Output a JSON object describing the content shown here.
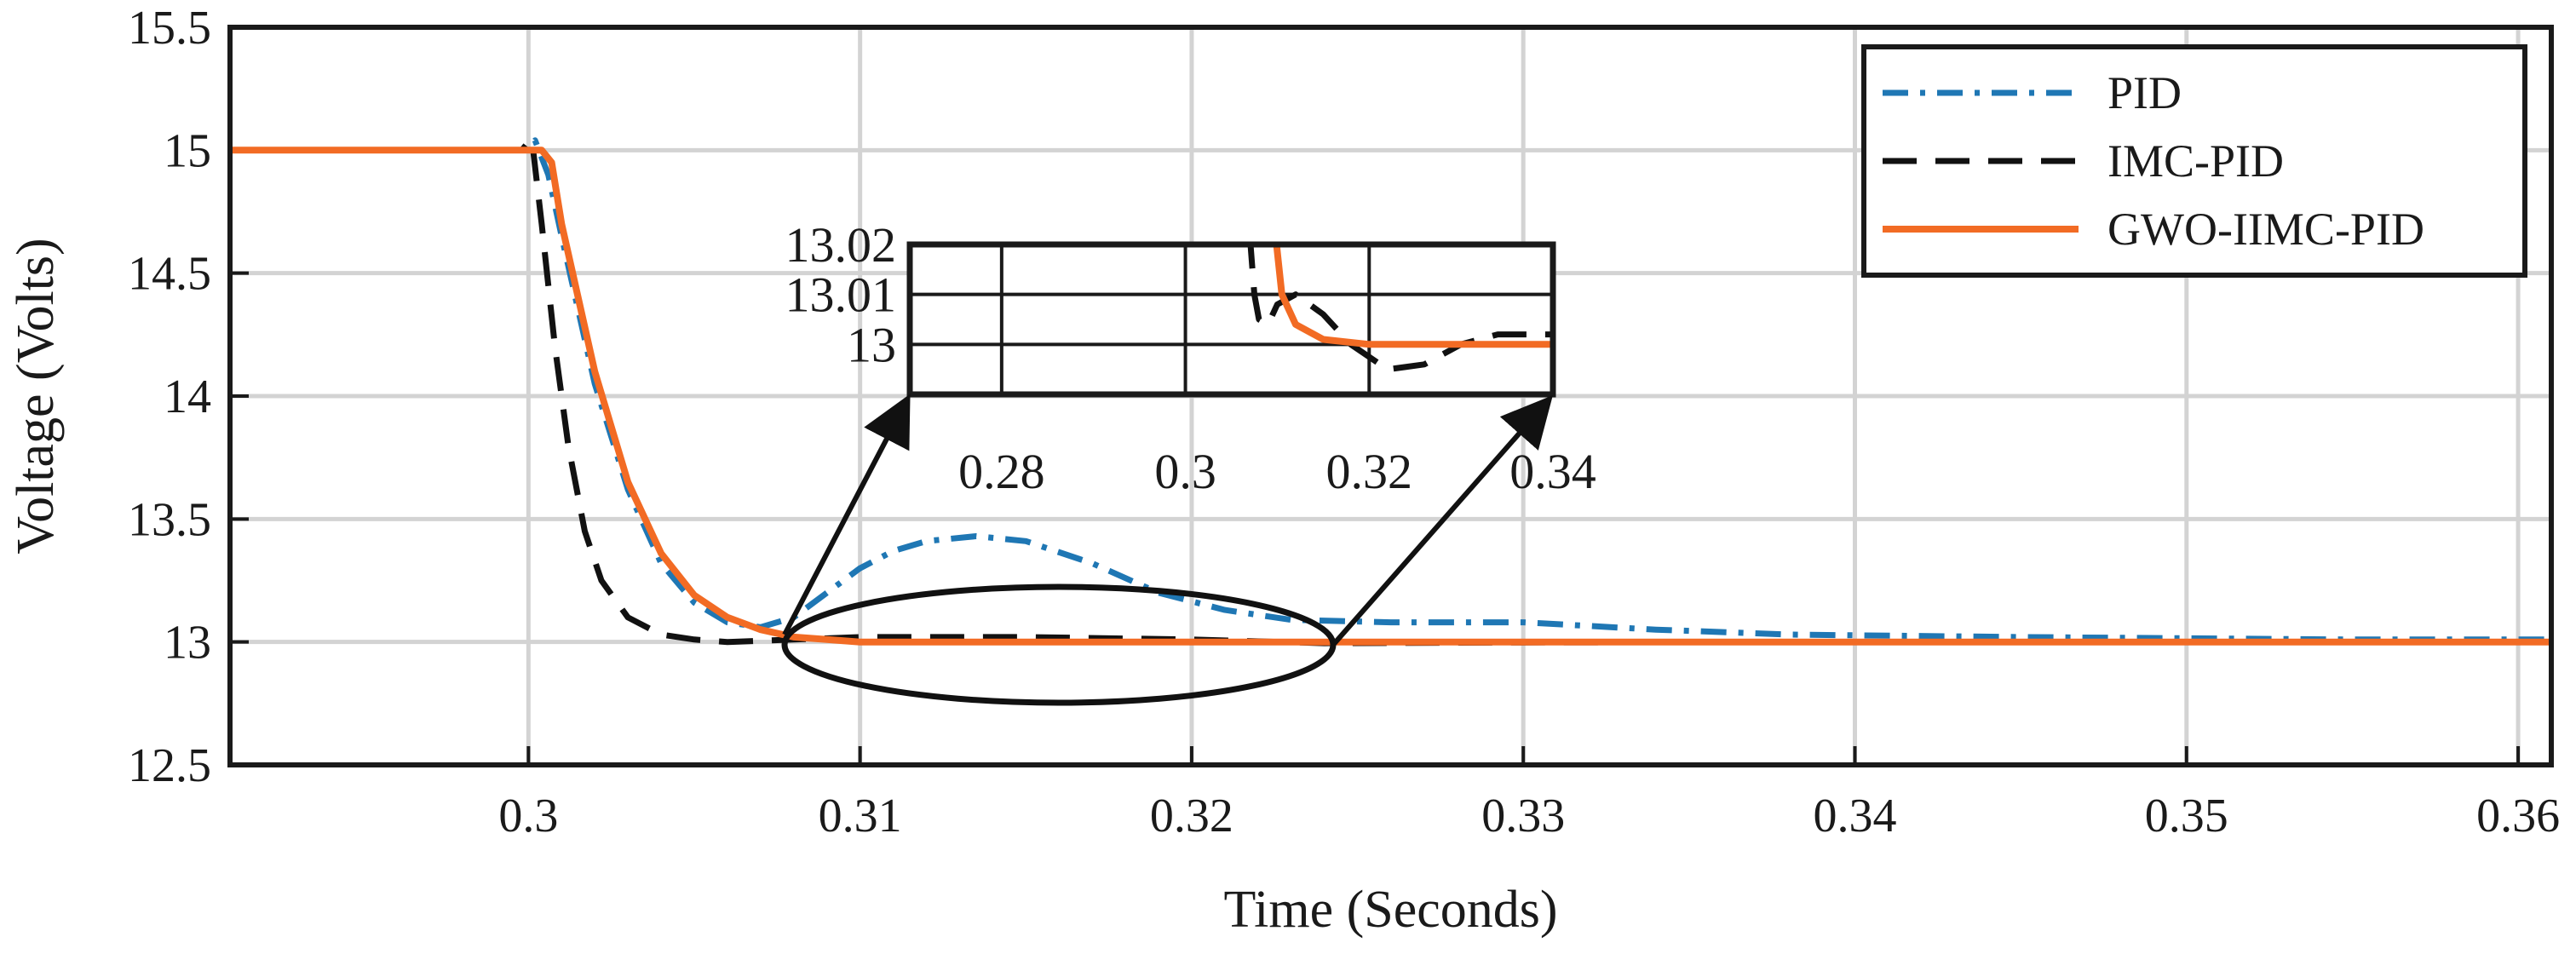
{
  "chart_data": {
    "type": "line",
    "xlabel": "Time (Seconds)",
    "ylabel": "Voltage (Volts)",
    "xlim": [
      0.291,
      0.361
    ],
    "ylim": [
      12.5,
      15.5
    ],
    "xticks": [
      "0.3",
      "0.31",
      "0.32",
      "0.33",
      "0.34",
      "0.35",
      "0.36"
    ],
    "yticks": [
      "12.5",
      "13",
      "13.5",
      "14",
      "14.5",
      "15",
      "15.5"
    ],
    "grid": true,
    "legend_position": "top-right",
    "series": [
      {
        "name": "PID",
        "color": "#1f77b4",
        "style": "dash-dot",
        "points": [
          [
            0.291,
            15.0
          ],
          [
            0.3,
            15.0
          ],
          [
            0.3002,
            15.04
          ],
          [
            0.3006,
            14.9
          ],
          [
            0.301,
            14.65
          ],
          [
            0.302,
            14.05
          ],
          [
            0.303,
            13.62
          ],
          [
            0.304,
            13.32
          ],
          [
            0.305,
            13.16
          ],
          [
            0.306,
            13.08
          ],
          [
            0.307,
            13.06
          ],
          [
            0.308,
            13.1
          ],
          [
            0.309,
            13.2
          ],
          [
            0.31,
            13.3
          ],
          [
            0.311,
            13.37
          ],
          [
            0.312,
            13.41
          ],
          [
            0.3135,
            13.43
          ],
          [
            0.315,
            13.41
          ],
          [
            0.317,
            13.32
          ],
          [
            0.319,
            13.2
          ],
          [
            0.321,
            13.13
          ],
          [
            0.323,
            13.09
          ],
          [
            0.326,
            13.08
          ],
          [
            0.33,
            13.08
          ],
          [
            0.334,
            13.05
          ],
          [
            0.338,
            13.03
          ],
          [
            0.345,
            13.02
          ],
          [
            0.355,
            13.01
          ],
          [
            0.361,
            13.01
          ]
        ]
      },
      {
        "name": "IMC-PID",
        "color": "#111111",
        "style": "dashed",
        "points": [
          [
            0.291,
            15.0
          ],
          [
            0.2998,
            15.0
          ],
          [
            0.3001,
            15.05
          ],
          [
            0.3004,
            14.7
          ],
          [
            0.3008,
            14.2
          ],
          [
            0.3012,
            13.8
          ],
          [
            0.3017,
            13.45
          ],
          [
            0.3022,
            13.25
          ],
          [
            0.303,
            13.1
          ],
          [
            0.304,
            13.03
          ],
          [
            0.305,
            13.01
          ],
          [
            0.306,
            13.0
          ],
          [
            0.308,
            13.01
          ],
          [
            0.31,
            13.02
          ],
          [
            0.315,
            13.02
          ],
          [
            0.32,
            13.01
          ],
          [
            0.324,
            12.995
          ],
          [
            0.33,
            12.998
          ],
          [
            0.34,
            13.0
          ],
          [
            0.361,
            13.0
          ]
        ]
      },
      {
        "name": "GWO-IIMC-PID",
        "color": "#f26b24",
        "style": "solid",
        "points": [
          [
            0.291,
            15.0
          ],
          [
            0.3004,
            15.0
          ],
          [
            0.3007,
            14.95
          ],
          [
            0.301,
            14.7
          ],
          [
            0.302,
            14.1
          ],
          [
            0.303,
            13.65
          ],
          [
            0.304,
            13.36
          ],
          [
            0.305,
            13.19
          ],
          [
            0.306,
            13.1
          ],
          [
            0.307,
            13.05
          ],
          [
            0.308,
            13.02
          ],
          [
            0.309,
            13.01
          ],
          [
            0.31,
            13.0
          ],
          [
            0.361,
            13.0
          ]
        ]
      }
    ],
    "inset": {
      "xlim": [
        0.27,
        0.34
      ],
      "ylim": [
        12.99,
        13.02
      ],
      "xticks": [
        "0.28",
        "0.3",
        "0.32",
        "0.34"
      ],
      "yticks": [
        "13",
        "13.01",
        "13.02"
      ],
      "series": [
        {
          "name": "IMC-PID",
          "points": [
            [
              0.307,
              13.022
            ],
            [
              0.3075,
              13.01
            ],
            [
              0.308,
              13.005
            ],
            [
              0.309,
              13.004
            ],
            [
              0.31,
              13.008
            ],
            [
              0.312,
              13.01
            ],
            [
              0.315,
              13.006
            ],
            [
              0.318,
              13.0
            ],
            [
              0.322,
              12.995
            ],
            [
              0.326,
              12.996
            ],
            [
              0.33,
              13.0
            ],
            [
              0.334,
              13.002
            ],
            [
              0.34,
              13.002
            ]
          ]
        },
        {
          "name": "GWO-IIMC-PID",
          "points": [
            [
              0.3098,
              13.022
            ],
            [
              0.3105,
              13.01
            ],
            [
              0.312,
              13.004
            ],
            [
              0.315,
              13.001
            ],
            [
              0.32,
              13.0
            ],
            [
              0.34,
              13.0
            ]
          ]
        }
      ]
    }
  }
}
